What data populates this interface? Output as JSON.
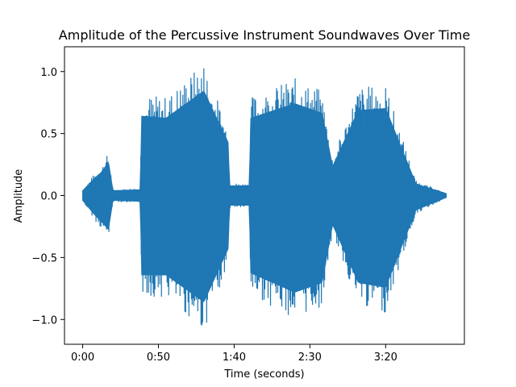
{
  "chart_data": {
    "type": "line",
    "title": "Amplitude of the Percussive Instrument Soundwaves Over Time",
    "xlabel": "Time (seconds)",
    "ylabel": "Amplitude",
    "xlim": [
      -12,
      252
    ],
    "ylim": [
      -1.2,
      1.2
    ],
    "x_ticks": [
      {
        "value": 0,
        "label": "0:00"
      },
      {
        "value": 50,
        "label": "0:50"
      },
      {
        "value": 100,
        "label": "1:40"
      },
      {
        "value": 150,
        "label": "2:30"
      },
      {
        "value": 200,
        "label": "3:20"
      }
    ],
    "y_ticks": [
      {
        "value": -1.0,
        "label": "−1.0"
      },
      {
        "value": -0.5,
        "label": "−0.5"
      },
      {
        "value": 0.0,
        "label": "0.0"
      },
      {
        "value": 0.5,
        "label": "0.5"
      },
      {
        "value": 1.0,
        "label": "1.0"
      }
    ],
    "grid": false,
    "series": [
      {
        "color": "#1f77b4",
        "envelope": [
          {
            "time": 0,
            "max": 0.05,
            "min": -0.05
          },
          {
            "time": 8,
            "max": 0.18,
            "min": -0.2
          },
          {
            "time": 13,
            "max": 0.25,
            "min": -0.28
          },
          {
            "time": 17,
            "max": 0.35,
            "min": -0.35
          },
          {
            "time": 20,
            "max": 0.05,
            "min": -0.05
          },
          {
            "time": 38,
            "max": 0.06,
            "min": -0.06
          },
          {
            "time": 39,
            "max": 0.82,
            "min": -0.82
          },
          {
            "time": 55,
            "max": 0.8,
            "min": -0.82
          },
          {
            "time": 80,
            "max": 1.08,
            "min": -1.1
          },
          {
            "time": 96,
            "max": 0.55,
            "min": -0.55
          },
          {
            "time": 97,
            "max": 0.1,
            "min": -0.1
          },
          {
            "time": 110,
            "max": 0.1,
            "min": -0.1
          },
          {
            "time": 111,
            "max": 0.8,
            "min": -0.8
          },
          {
            "time": 140,
            "max": 0.95,
            "min": -1.0
          },
          {
            "time": 158,
            "max": 0.85,
            "min": -0.9
          },
          {
            "time": 165,
            "max": 0.3,
            "min": -0.3
          },
          {
            "time": 182,
            "max": 0.88,
            "min": -0.9
          },
          {
            "time": 200,
            "max": 0.9,
            "min": -0.95
          },
          {
            "time": 220,
            "max": 0.12,
            "min": -0.15
          },
          {
            "time": 240,
            "max": 0.02,
            "min": -0.02
          }
        ]
      }
    ]
  }
}
